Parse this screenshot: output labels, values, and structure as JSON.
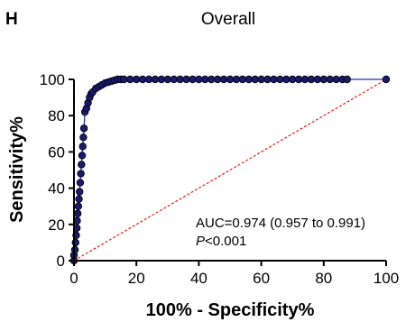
{
  "chart_data": {
    "type": "line",
    "panel_label": "H",
    "title": "Overall",
    "xlabel": "100% - Specificity%",
    "ylabel": "Sensitivity%",
    "xlim": [
      0,
      100
    ],
    "ylim": [
      0,
      100
    ],
    "xticks": [
      0,
      20,
      40,
      60,
      80,
      100
    ],
    "yticks": [
      0,
      20,
      40,
      60,
      80,
      100
    ],
    "grid": false,
    "colors": {
      "curve_line": "#2b2bb5",
      "marker_fill": "#1a1a6e",
      "marker_edge": "#000000",
      "reference_line": "#e02020"
    },
    "annotation": {
      "auc_text": "AUC=0.974 (0.957 to 0.991)",
      "p_prefix": "P",
      "p_suffix": "<0.001"
    },
    "series": [
      {
        "x": [
          0,
          0,
          0.3,
          0.5,
          0.7,
          0.9,
          1.0,
          1.2,
          1.4,
          1.6,
          1.8,
          2.0,
          2.2,
          2.4,
          2.6,
          2.8,
          3.0,
          3.2,
          3.5,
          4.0,
          4.5,
          5.0,
          5.5,
          6.0,
          7.0,
          8.0,
          9.0,
          10.0,
          11.0,
          12.0,
          13.0,
          14.0,
          15.0,
          16.0,
          18.0,
          20.0,
          22.0,
          24.0,
          26.0,
          28.0,
          30.0,
          32.0,
          34.0,
          36.0,
          38.0,
          40.0,
          42.0,
          44.0,
          46.0,
          48.0,
          50.0,
          52.0,
          54.0,
          56.0,
          58.0,
          60.0,
          62.0,
          64.0,
          66.0,
          68.0,
          70.0,
          72.0,
          74.0,
          76.0,
          78.0,
          80.0,
          82.0,
          84.0,
          86.0,
          87.5,
          100
        ],
        "y": [
          0,
          3,
          6,
          10,
          14,
          18,
          22,
          26,
          30,
          34,
          38,
          43,
          48,
          53,
          58,
          63,
          68,
          73,
          82,
          84,
          87,
          90,
          92,
          93,
          95,
          96,
          97,
          98,
          98.5,
          99,
          99.5,
          100,
          100,
          100,
          100,
          100,
          100,
          100,
          100,
          100,
          100,
          100,
          100,
          100,
          100,
          100,
          100,
          100,
          100,
          100,
          100,
          100,
          100,
          100,
          100,
          100,
          100,
          100,
          100,
          100,
          100,
          100,
          100,
          100,
          100,
          100,
          100,
          100,
          100,
          100,
          100
        ]
      }
    ]
  }
}
